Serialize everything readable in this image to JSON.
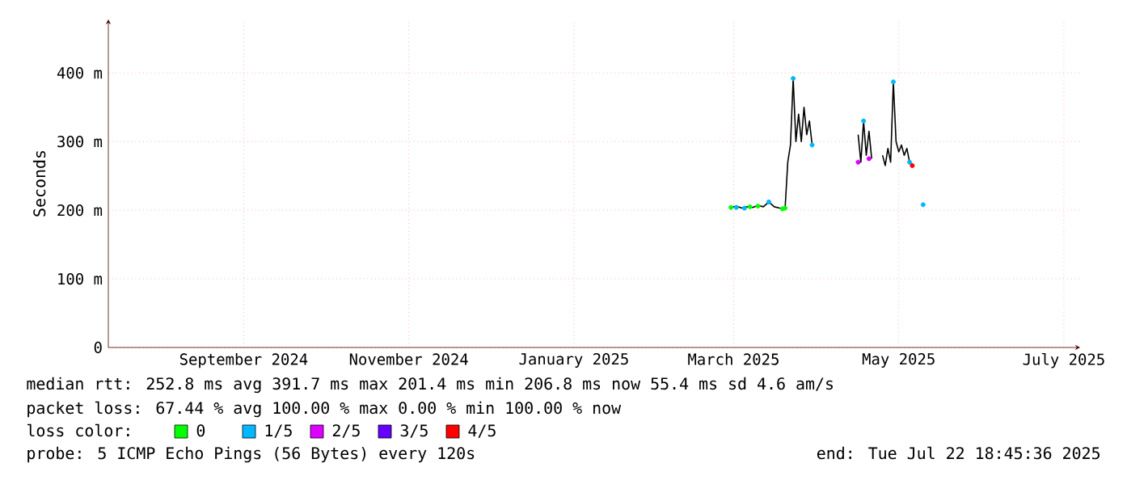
{
  "chart_data": {
    "type": "line",
    "ylabel": "Seconds",
    "legend_title": "loss color:",
    "legend": "bottom",
    "grid": true,
    "xlim": [
      "2024-07-28",
      "2025-07-22"
    ],
    "xticks": [
      {
        "value": "2024-09-16",
        "label": "September 2024"
      },
      {
        "value": "2024-11-16",
        "label": "November 2024"
      },
      {
        "value": "2025-01-16",
        "label": "January 2025"
      },
      {
        "value": "2025-03-16",
        "label": "March 2025"
      },
      {
        "value": "2025-05-16",
        "label": "May 2025"
      },
      {
        "value": "2025-07-16",
        "label": "July 2025"
      }
    ],
    "ylim": [
      0,
      478
    ],
    "yticks": [
      0,
      {
        "value": 100,
        "label": "100 m"
      },
      {
        "value": 200,
        "label": "200 m"
      },
      {
        "value": 300,
        "label": "300 m"
      },
      {
        "value": 400,
        "label": "400 m"
      }
    ],
    "series": [
      {
        "color": "#000000",
        "x": [
          "2025-03-15",
          "2025-03-17",
          "2025-03-19",
          "2025-03-21",
          "2025-03-23",
          "2025-03-25",
          "2025-03-27",
          "2025-03-29",
          "2025-03-31",
          "2025-04-02",
          "2025-04-04",
          "2025-04-05",
          "2025-04-06",
          "2025-04-07",
          "2025-04-08",
          "2025-04-09",
          "2025-04-10",
          "2025-04-11",
          "2025-04-12",
          "2025-04-13",
          "2025-04-14",
          "2025-04-20",
          "2025-05-01",
          "2025-05-02",
          "2025-05-03",
          "2025-05-04",
          "2025-05-05",
          "2025-05-06",
          "2025-05-08",
          "2025-05-10",
          "2025-05-11",
          "2025-05-12",
          "2025-05-13",
          "2025-05-14",
          "2025-05-15",
          "2025-05-16",
          "2025-05-17",
          "2025-05-18",
          "2025-05-19",
          "2025-05-20",
          "2025-05-21"
        ],
        "values": [
          204,
          206,
          203,
          205,
          204,
          207,
          205,
          212,
          205,
          203,
          202,
          270,
          295,
          392,
          300,
          340,
          300,
          350,
          310,
          330,
          295,
          null,
          310,
          270,
          330,
          280,
          315,
          275,
          null,
          280,
          265,
          290,
          270,
          387,
          300,
          285,
          295,
          280,
          290,
          270,
          265
        ]
      },
      {
        "type": "scatter",
        "name": "0",
        "color": "#00ff00",
        "x": [
          "2025-03-15",
          "2025-03-22",
          "2025-03-25",
          "2025-04-03",
          "2025-04-04"
        ],
        "values": [
          204,
          205,
          206,
          202,
          203
        ]
      },
      {
        "type": "scatter",
        "name": "1/5",
        "color": "#00b8ff",
        "x": [
          "2025-03-17",
          "2025-03-20",
          "2025-03-29",
          "2025-04-07",
          "2025-04-14",
          "2025-05-03",
          "2025-05-14",
          "2025-05-20",
          "2025-05-25"
        ],
        "values": [
          204,
          203,
          212,
          392,
          295,
          330,
          387,
          270,
          208
        ]
      },
      {
        "type": "scatter",
        "name": "2/5",
        "color": "#dd00ff",
        "x": [
          "2025-05-01",
          "2025-05-05"
        ],
        "values": [
          270,
          275
        ]
      },
      {
        "type": "scatter",
        "name": "3/5",
        "color": "#6600ff"
      },
      {
        "type": "scatter",
        "name": "4/5",
        "color": "#ff0000",
        "x": [
          "2025-05-21"
        ],
        "values": [
          265
        ]
      }
    ],
    "annotations": [
      "median rtt:  252.8 ms avg  391.7 ms max  201.4 ms min  206.8 ms now  55.4 ms sd  4.6   am/s",
      "packet loss: 67.44 % avg  100.00 % max  0.00 % min  100.00 % now",
      "probe:       5 ICMP Echo Pings (56 Bytes) every 120s",
      "end: Tue Jul 22 18:45:36 2025"
    ]
  }
}
